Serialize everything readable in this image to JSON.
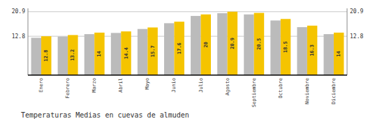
{
  "chart_data": {
    "type": "bar",
    "title": "Temperaturas Medias en cuevas de almuden",
    "categories": [
      "Enero",
      "Febrero",
      "Marzo",
      "Abril",
      "Mayo",
      "Junio",
      "Julio",
      "Agosto",
      "Septiembre",
      "Octubre",
      "Noviembre",
      "Diciembre"
    ],
    "series": [
      {
        "color": "#BBBBBB",
        "values": [
          12.3,
          12.7,
          13.5,
          13.9,
          15.2,
          17.1,
          19.5,
          20.4,
          20.0,
          18.0,
          15.8,
          13.5
        ]
      },
      {
        "color": "#F5C400",
        "data_labels": true,
        "values": [
          12.8,
          13.2,
          14.0,
          14.4,
          15.7,
          17.6,
          20.0,
          20.9,
          20.5,
          18.5,
          16.3,
          14.0
        ]
      }
    ],
    "ylim": [
      0,
      22.0
    ],
    "yticks": [
      12.8,
      20.9
    ],
    "y2lim": [
      0,
      22.0
    ],
    "y2ticks": [
      12.8,
      20.9
    ],
    "grid": true
  }
}
